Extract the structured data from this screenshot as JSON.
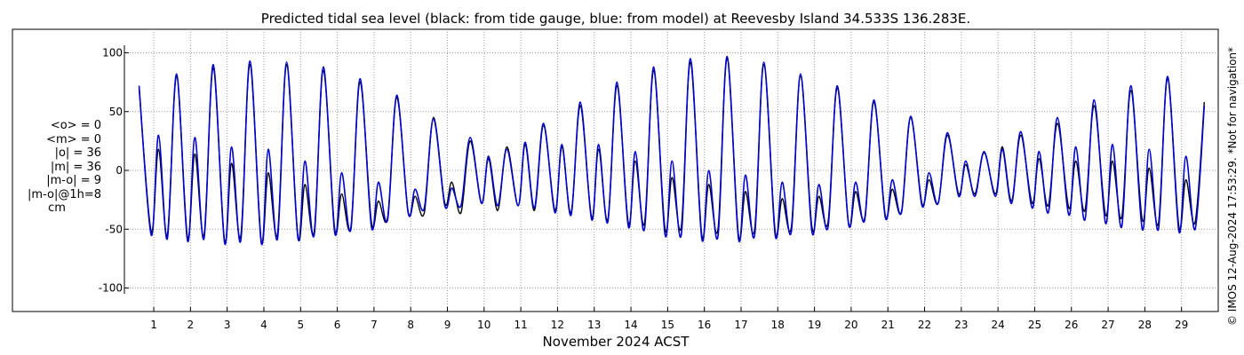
{
  "title": "Predicted tidal sea level (black: from tide gauge, blue: from model) at Reevesby Island 34.533S 136.283E.",
  "credit": "© IMOS 12-Aug-2024 17:53:29. *Not for navigation*",
  "stats": {
    "lines": [
      "<o> = 0",
      "<m> = 0",
      "|o| = 36",
      "|m| = 36",
      "|m-o| = 9",
      "|m-o|@1h=8"
    ],
    "units": "cm"
  },
  "colors": {
    "observed": "#000000",
    "model": "#0000cc",
    "grid": "#9a9a9a"
  },
  "chart_data": {
    "type": "line",
    "title": "Predicted tidal sea level (black: from tide gauge, blue: from model) at Reevesby Island 34.533S 136.283E.",
    "xlabel": "November 2024 ACST",
    "ylabel": "",
    "xlim": [
      0.2,
      30.0
    ],
    "ylim": [
      -120,
      120
    ],
    "yticks": [
      -100,
      -50,
      0,
      50,
      100
    ],
    "ytick_labels": [
      "-100",
      "-50",
      "0",
      "50",
      "100"
    ],
    "xticks": [
      1,
      2,
      3,
      4,
      5,
      6,
      7,
      8,
      9,
      10,
      11,
      12,
      13,
      14,
      15,
      16,
      17,
      18,
      19,
      20,
      21,
      22,
      23,
      24,
      25,
      26,
      27,
      28,
      29
    ],
    "xtick_labels": [
      "1",
      "2",
      "3",
      "4",
      "5",
      "6",
      "7",
      "8",
      "9",
      "10",
      "11",
      "12",
      "13",
      "14",
      "15",
      "16",
      "17",
      "18",
      "19",
      "20",
      "21",
      "22",
      "23",
      "24",
      "25",
      "26",
      "27",
      "28",
      "29"
    ],
    "grid": true,
    "series": [
      {
        "label": "observed",
        "color": "#000000",
        "points": [
          [
            0.6,
            70
          ],
          [
            0.93,
            -52
          ],
          [
            1.13,
            18
          ],
          [
            1.37,
            -55
          ],
          [
            1.62,
            80
          ],
          [
            1.92,
            -57
          ],
          [
            2.12,
            14
          ],
          [
            2.37,
            -55
          ],
          [
            2.62,
            87
          ],
          [
            2.93,
            -60
          ],
          [
            3.12,
            6
          ],
          [
            3.37,
            -56
          ],
          [
            3.62,
            90
          ],
          [
            3.93,
            -60
          ],
          [
            4.12,
            -2
          ],
          [
            4.37,
            -54
          ],
          [
            4.62,
            90
          ],
          [
            4.93,
            -57
          ],
          [
            5.12,
            -12
          ],
          [
            5.37,
            -52
          ],
          [
            5.62,
            85
          ],
          [
            5.93,
            -50
          ],
          [
            6.12,
            -20
          ],
          [
            6.37,
            -48
          ],
          [
            6.62,
            75
          ],
          [
            6.93,
            -44
          ],
          [
            7.12,
            -26
          ],
          [
            7.37,
            -40
          ],
          [
            7.62,
            62
          ],
          [
            7.93,
            -35
          ],
          [
            8.12,
            -22
          ],
          [
            8.37,
            -36
          ],
          [
            8.62,
            45
          ],
          [
            8.93,
            -28
          ],
          [
            9.12,
            -10
          ],
          [
            9.37,
            -36
          ],
          [
            9.62,
            25
          ],
          [
            9.93,
            -28
          ],
          [
            10.12,
            10
          ],
          [
            10.37,
            -34
          ],
          [
            10.62,
            20
          ],
          [
            10.93,
            -30
          ],
          [
            11.12,
            22
          ],
          [
            11.37,
            -34
          ],
          [
            11.62,
            38
          ],
          [
            11.93,
            -34
          ],
          [
            12.12,
            20
          ],
          [
            12.37,
            -36
          ],
          [
            12.62,
            55
          ],
          [
            12.93,
            -40
          ],
          [
            13.12,
            18
          ],
          [
            13.37,
            -42
          ],
          [
            13.62,
            72
          ],
          [
            13.93,
            -45
          ],
          [
            14.12,
            8
          ],
          [
            14.37,
            -45
          ],
          [
            14.62,
            85
          ],
          [
            14.93,
            -50
          ],
          [
            15.12,
            -6
          ],
          [
            15.37,
            -48
          ],
          [
            15.62,
            92
          ],
          [
            15.93,
            -55
          ],
          [
            16.12,
            -12
          ],
          [
            16.37,
            -50
          ],
          [
            16.62,
            95
          ],
          [
            16.93,
            -55
          ],
          [
            17.12,
            -18
          ],
          [
            17.37,
            -50
          ],
          [
            17.62,
            90
          ],
          [
            17.93,
            -52
          ],
          [
            18.12,
            -24
          ],
          [
            18.37,
            -48
          ],
          [
            18.62,
            80
          ],
          [
            18.93,
            -48
          ],
          [
            19.12,
            -22
          ],
          [
            19.37,
            -44
          ],
          [
            19.62,
            70
          ],
          [
            19.93,
            -45
          ],
          [
            20.12,
            -18
          ],
          [
            20.37,
            -40
          ],
          [
            20.62,
            58
          ],
          [
            20.93,
            -38
          ],
          [
            21.12,
            -16
          ],
          [
            21.37,
            -35
          ],
          [
            21.62,
            45
          ],
          [
            21.93,
            -28
          ],
          [
            22.12,
            -8
          ],
          [
            22.37,
            -28
          ],
          [
            22.62,
            30
          ],
          [
            22.93,
            -20
          ],
          [
            23.12,
            5
          ],
          [
            23.37,
            -20
          ],
          [
            23.62,
            15
          ],
          [
            23.93,
            -20
          ],
          [
            24.12,
            20
          ],
          [
            24.37,
            -26
          ],
          [
            24.62,
            30
          ],
          [
            24.93,
            -28
          ],
          [
            25.12,
            10
          ],
          [
            25.37,
            -30
          ],
          [
            25.62,
            40
          ],
          [
            25.93,
            -32
          ],
          [
            26.12,
            8
          ],
          [
            26.37,
            -34
          ],
          [
            26.62,
            55
          ],
          [
            26.93,
            -38
          ],
          [
            27.12,
            8
          ],
          [
            27.37,
            -40
          ],
          [
            27.62,
            68
          ],
          [
            27.93,
            -42
          ],
          [
            28.12,
            2
          ],
          [
            28.37,
            -45
          ],
          [
            28.62,
            78
          ],
          [
            28.93,
            -48
          ],
          [
            29.12,
            -8
          ],
          [
            29.37,
            -44
          ],
          [
            29.62,
            58
          ]
        ]
      },
      {
        "label": "model",
        "color": "#0000cc",
        "points": [
          [
            0.6,
            72
          ],
          [
            0.93,
            -55
          ],
          [
            1.13,
            30
          ],
          [
            1.37,
            -58
          ],
          [
            1.62,
            82
          ],
          [
            1.92,
            -60
          ],
          [
            2.12,
            28
          ],
          [
            2.37,
            -58
          ],
          [
            2.62,
            90
          ],
          [
            2.93,
            -62
          ],
          [
            3.12,
            20
          ],
          [
            3.37,
            -60
          ],
          [
            3.62,
            93
          ],
          [
            3.93,
            -62
          ],
          [
            4.12,
            18
          ],
          [
            4.37,
            -58
          ],
          [
            4.62,
            92
          ],
          [
            4.93,
            -58
          ],
          [
            5.12,
            8
          ],
          [
            5.37,
            -55
          ],
          [
            5.62,
            88
          ],
          [
            5.93,
            -53
          ],
          [
            6.12,
            -2
          ],
          [
            6.37,
            -50
          ],
          [
            6.62,
            78
          ],
          [
            6.93,
            -48
          ],
          [
            7.12,
            -10
          ],
          [
            7.37,
            -42
          ],
          [
            7.62,
            64
          ],
          [
            7.93,
            -36
          ],
          [
            8.12,
            -16
          ],
          [
            8.37,
            -32
          ],
          [
            8.62,
            44
          ],
          [
            8.93,
            -30
          ],
          [
            9.12,
            -15
          ],
          [
            9.37,
            -30
          ],
          [
            9.62,
            28
          ],
          [
            9.93,
            -28
          ],
          [
            10.12,
            12
          ],
          [
            10.37,
            -30
          ],
          [
            10.62,
            18
          ],
          [
            10.93,
            -30
          ],
          [
            11.12,
            24
          ],
          [
            11.37,
            -32
          ],
          [
            11.62,
            40
          ],
          [
            11.93,
            -36
          ],
          [
            12.12,
            22
          ],
          [
            12.37,
            -38
          ],
          [
            12.62,
            58
          ],
          [
            12.93,
            -42
          ],
          [
            13.12,
            22
          ],
          [
            13.37,
            -44
          ],
          [
            13.62,
            75
          ],
          [
            13.93,
            -48
          ],
          [
            14.12,
            16
          ],
          [
            14.37,
            -50
          ],
          [
            14.62,
            88
          ],
          [
            14.93,
            -55
          ],
          [
            15.12,
            8
          ],
          [
            15.37,
            -55
          ],
          [
            15.62,
            95
          ],
          [
            15.93,
            -58
          ],
          [
            16.12,
            0
          ],
          [
            16.37,
            -56
          ],
          [
            16.62,
            97
          ],
          [
            16.93,
            -58
          ],
          [
            17.12,
            -4
          ],
          [
            17.37,
            -55
          ],
          [
            17.62,
            92
          ],
          [
            17.93,
            -55
          ],
          [
            18.12,
            -10
          ],
          [
            18.37,
            -52
          ],
          [
            18.62,
            82
          ],
          [
            18.93,
            -52
          ],
          [
            19.12,
            -12
          ],
          [
            19.37,
            -48
          ],
          [
            19.62,
            72
          ],
          [
            19.93,
            -46
          ],
          [
            20.12,
            -10
          ],
          [
            20.37,
            -42
          ],
          [
            20.62,
            60
          ],
          [
            20.93,
            -40
          ],
          [
            21.12,
            -8
          ],
          [
            21.37,
            -36
          ],
          [
            21.62,
            46
          ],
          [
            21.93,
            -30
          ],
          [
            22.12,
            -2
          ],
          [
            22.37,
            -28
          ],
          [
            22.62,
            32
          ],
          [
            22.93,
            -22
          ],
          [
            23.12,
            8
          ],
          [
            23.37,
            -22
          ],
          [
            23.62,
            16
          ],
          [
            23.93,
            -22
          ],
          [
            24.12,
            18
          ],
          [
            24.37,
            -28
          ],
          [
            24.62,
            33
          ],
          [
            24.93,
            -32
          ],
          [
            25.12,
            16
          ],
          [
            25.37,
            -36
          ],
          [
            25.62,
            45
          ],
          [
            25.93,
            -38
          ],
          [
            26.12,
            20
          ],
          [
            26.37,
            -42
          ],
          [
            26.62,
            60
          ],
          [
            26.93,
            -45
          ],
          [
            27.12,
            22
          ],
          [
            27.37,
            -48
          ],
          [
            27.62,
            72
          ],
          [
            27.93,
            -50
          ],
          [
            28.12,
            18
          ],
          [
            28.37,
            -50
          ],
          [
            28.62,
            80
          ],
          [
            28.93,
            -52
          ],
          [
            29.12,
            12
          ],
          [
            29.37,
            -50
          ],
          [
            29.62,
            55
          ]
        ]
      }
    ]
  }
}
